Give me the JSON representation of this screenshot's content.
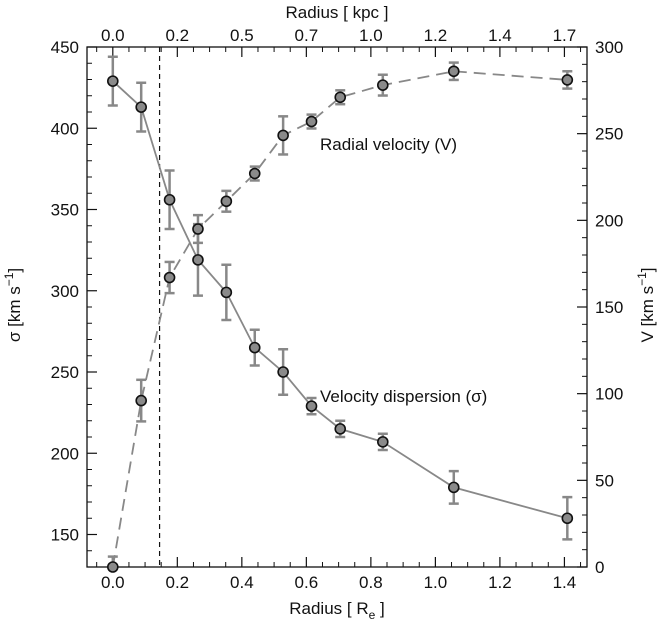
{
  "chart_data": {
    "type": "scatter",
    "x_bottom": {
      "label": "Radius [ R",
      "label_sub": "e",
      "label_tail": " ]",
      "range": [
        -0.08,
        1.47
      ],
      "ticks": [
        0.0,
        0.2,
        0.4,
        0.6,
        0.8,
        1.0,
        1.2,
        1.4
      ],
      "tick_labels": [
        "0.0",
        "0.2",
        "0.4",
        "0.6",
        "0.8",
        "1.0",
        "1.2",
        "1.4"
      ]
    },
    "x_top": {
      "label": "Radius [ kpc ]",
      "tick_labels": [
        "0.0",
        "0.2",
        "0.5",
        "0.7",
        "1.0",
        "1.2",
        "1.4",
        "1.7"
      ]
    },
    "y_left": {
      "label": "σ [km s",
      "label_sup": "−1",
      "label_tail": "]",
      "range": [
        130,
        450
      ],
      "ticks": [
        150,
        200,
        250,
        300,
        350,
        400,
        450
      ],
      "tick_labels": [
        "150",
        "200",
        "250",
        "300",
        "350",
        "400",
        "450"
      ]
    },
    "y_right": {
      "label": "V [km s",
      "label_sup": "−1",
      "label_tail": "]",
      "range": [
        0,
        300
      ],
      "ticks": [
        0,
        50,
        100,
        150,
        200,
        250,
        300
      ],
      "tick_labels": [
        "0",
        "50",
        "100",
        "150",
        "200",
        "250",
        "300"
      ]
    },
    "vertical_line_x": 0.145,
    "series": [
      {
        "name": "Velocity dispersion (σ)",
        "axis": "left",
        "line_style": "solid",
        "x": [
          0.0,
          0.088,
          0.176,
          0.264,
          0.352,
          0.44,
          0.528,
          0.616,
          0.705,
          0.837,
          1.057,
          1.409
        ],
        "y": [
          429,
          413,
          356,
          319,
          299,
          265,
          250,
          229,
          215,
          207,
          179,
          160
        ],
        "err": [
          15,
          15,
          18,
          22,
          17,
          11,
          14,
          5,
          5,
          5,
          10,
          13
        ]
      },
      {
        "name": "Radial velocity (V)",
        "axis": "right",
        "line_style": "dashed",
        "x": [
          0.0,
          0.088,
          0.176,
          0.264,
          0.352,
          0.44,
          0.528,
          0.616,
          0.705,
          0.837,
          1.057,
          1.409
        ],
        "y": [
          0,
          96,
          167,
          195,
          211,
          227,
          249,
          257,
          271,
          278,
          286,
          281
        ],
        "err": [
          6,
          12,
          9,
          8,
          6,
          4,
          11,
          4,
          4,
          6,
          5,
          5
        ]
      }
    ]
  }
}
